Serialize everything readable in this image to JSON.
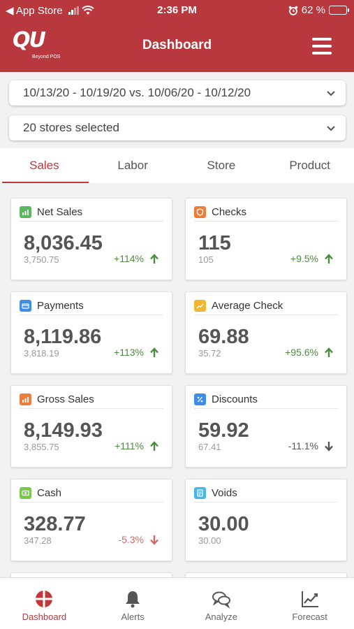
{
  "status_bar": {
    "back_app": "◀ App Store",
    "time": "2:36 PM",
    "battery": "62 %",
    "battery_level": 0.62
  },
  "header": {
    "logo_text": "QU",
    "logo_tagline": "Beyond POS",
    "title": "Dashboard"
  },
  "filters": {
    "date_range": "10/13/20 - 10/19/20 vs. 10/06/20 - 10/12/20",
    "stores": "20 stores selected"
  },
  "tabs": [
    {
      "label": "Sales"
    },
    {
      "label": "Labor"
    },
    {
      "label": "Store"
    },
    {
      "label": "Product"
    }
  ],
  "cards": [
    {
      "title": "Net Sales",
      "value": "8,036.45",
      "previous": "3,750.75",
      "delta": "+114%",
      "icon_color": "#5bb85f",
      "icon": "chart-icon"
    },
    {
      "title": "Checks",
      "value": "115",
      "previous": "105",
      "delta": "+9.5%",
      "icon_color": "#ef7c38",
      "icon": "shield-icon"
    },
    {
      "title": "Payments",
      "value": "8,119.86",
      "previous": "3,818.19",
      "delta": "+113%",
      "icon_color": "#3e8ee8",
      "icon": "card-icon"
    },
    {
      "title": "Average Check",
      "value": "69.88",
      "previous": "35.72",
      "delta": "+95.6%",
      "icon_color": "#f2b630",
      "icon": "trend-icon"
    },
    {
      "title": "Gross Sales",
      "value": "8,149.93",
      "previous": "3,855.75",
      "delta": "+111%",
      "icon_color": "#ef7c38",
      "icon": "chart-icon"
    },
    {
      "title": "Discounts",
      "value": "59.92",
      "previous": "67.41",
      "delta": "-11.1%",
      "icon_color": "#3e8ee8",
      "icon": "percent-icon"
    },
    {
      "title": "Cash",
      "value": "328.77",
      "previous": "347.28",
      "delta": "-5.3%",
      "icon_color": "#7cc94a",
      "icon": "cash-icon"
    },
    {
      "title": "Voids",
      "value": "30.00",
      "previous": "30.00",
      "delta": "",
      "icon_color": "#49b7e8",
      "icon": "document-icon"
    }
  ],
  "bottom_nav": [
    {
      "label": "Dashboard",
      "icon": "dashboard-icon"
    },
    {
      "label": "Alerts",
      "icon": "bell-icon"
    },
    {
      "label": "Analyze",
      "icon": "chat-icon"
    },
    {
      "label": "Forecast",
      "icon": "line-chart-icon"
    }
  ],
  "colors": {
    "brand": "#b8383d",
    "accent": "#c0373c",
    "positive": "#4c8b3f",
    "negative": "#d06a6a"
  }
}
